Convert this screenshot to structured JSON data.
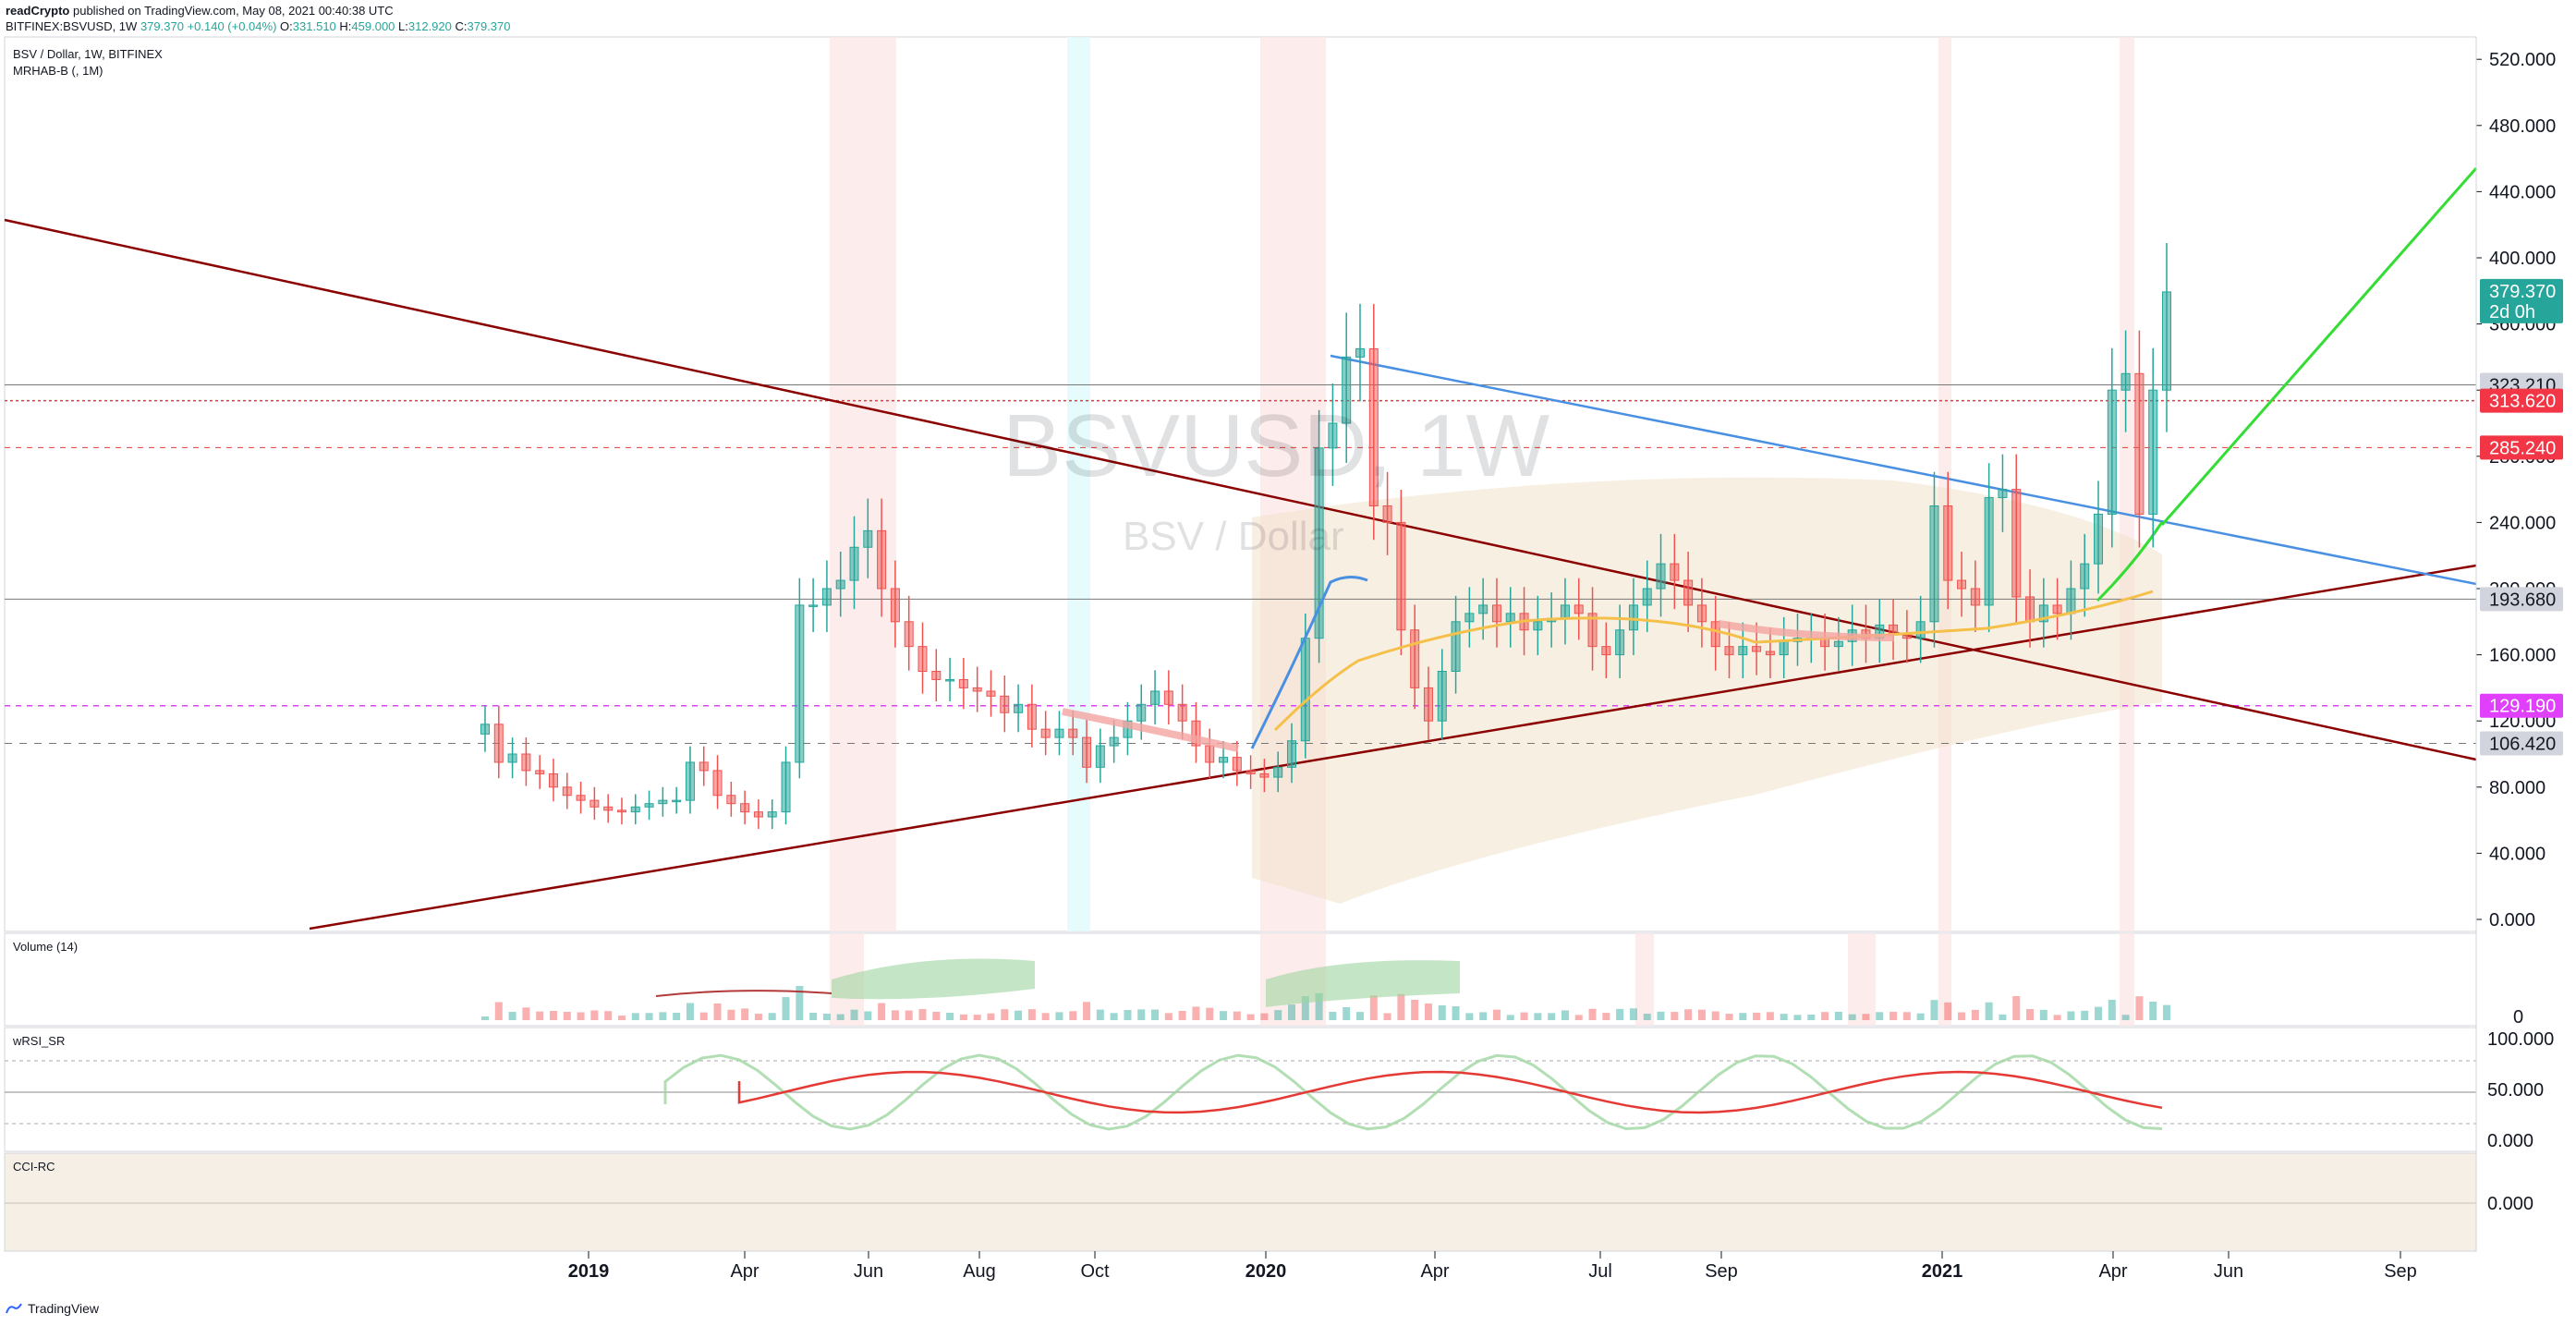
{
  "header": {
    "author": "readCrypto",
    "published": "published on TradingView.com, May 08, 2021 00:40:38 UTC",
    "symbol_line": "BITFINEX:BSVUSD, 1W",
    "last": "379.370",
    "change": "+0.140 (+0.04%)",
    "o_label": "O:",
    "o": "331.510",
    "h_label": "H:",
    "h": "459.000",
    "l_label": "L:",
    "l": "312.920",
    "c_label": "C:",
    "c": "379.370"
  },
  "chart_data": {
    "type": "candlestick",
    "title": "BSV / Dollar, 1W, BITFINEX",
    "subtitle": "MRHAB-B (, 1M)",
    "watermark_symbol": "BSVUSD, 1W",
    "watermark_name": "BSV / Dollar",
    "y_ticks": [
      "520.000",
      "480.000",
      "440.000",
      "400.000",
      "360.000",
      "320.000",
      "280.000",
      "240.000",
      "200.000",
      "160.000",
      "120.000",
      "80.000",
      "40.000",
      "0.000"
    ],
    "ylim": [
      0,
      540
    ],
    "x_labels": [
      "2019",
      "Apr",
      "Jun",
      "Aug",
      "Oct",
      "2020",
      "Apr",
      "Jul",
      "Sep",
      "2021",
      "Apr",
      "Jun",
      "Sep"
    ],
    "price_tags": [
      {
        "value": 379.37,
        "label": "379.370",
        "sub": "2d 0h",
        "color": "#26a69a"
      },
      {
        "value": 323.21,
        "label": "323.210",
        "color": "#d1d4dc"
      },
      {
        "value": 313.62,
        "label": "313.620",
        "color": "#f23645"
      },
      {
        "value": 285.24,
        "label": "285.240",
        "color": "#f23645"
      },
      {
        "value": 193.68,
        "label": "193.680",
        "color": "#d1d4dc"
      },
      {
        "value": 129.19,
        "label": "129.190",
        "color": "#e040fb"
      },
      {
        "value": 106.42,
        "label": "106.420",
        "color": "#d1d4dc"
      }
    ],
    "candles_close": [
      118,
      95,
      100,
      90,
      88,
      80,
      75,
      72,
      68,
      66,
      65,
      68,
      70,
      72,
      72,
      95,
      90,
      75,
      70,
      65,
      62,
      65,
      95,
      190,
      190,
      200,
      205,
      225,
      235,
      200,
      180,
      165,
      150,
      145,
      145,
      140,
      138,
      135,
      125,
      130,
      115,
      110,
      115,
      110,
      92,
      105,
      110,
      120,
      130,
      138,
      130,
      120,
      105,
      95,
      98,
      90,
      88,
      86,
      92,
      108,
      170,
      285,
      300,
      340,
      345,
      250,
      240,
      175,
      140,
      120,
      150,
      180,
      185,
      190,
      180,
      185,
      175,
      180,
      182,
      190,
      185,
      165,
      160,
      175,
      190,
      200,
      215,
      205,
      190,
      180,
      165,
      160,
      165,
      162,
      160,
      168,
      170,
      170,
      165,
      168,
      175,
      170,
      178,
      172,
      170,
      180,
      250,
      205,
      200,
      190,
      255,
      260,
      195,
      180,
      190,
      185,
      200,
      215,
      245,
      320,
      330,
      245,
      320,
      379.37
    ],
    "indicators": [
      {
        "name": "Volume (14)",
        "last": "0"
      },
      {
        "name": "wRSI_SR",
        "ticks": [
          "100.000",
          "50.000",
          "0.000"
        ]
      },
      {
        "name": "CCI-RC",
        "ticks": [
          "0.000"
        ]
      }
    ],
    "lines": [
      {
        "name": "descending-resistance",
        "color": "#8b0000"
      },
      {
        "name": "ascending-support",
        "color": "#8b0000"
      },
      {
        "name": "blue-trendline",
        "color": "#4a90e2"
      },
      {
        "name": "projection",
        "color": "#33dd33"
      }
    ]
  },
  "footer": {
    "brand": "TradingView"
  }
}
